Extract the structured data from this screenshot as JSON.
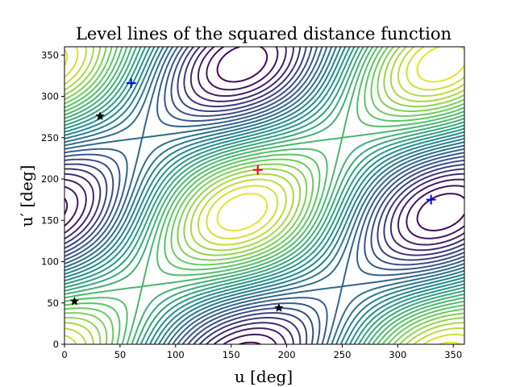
{
  "chart_data": {
    "type": "contour",
    "title": "Level lines of the squared distance function",
    "xlabel": "u [deg]",
    "ylabel": "u′ [deg]",
    "xlim": [
      0,
      360
    ],
    "ylim": [
      0,
      360
    ],
    "xticks": [
      0,
      50,
      100,
      150,
      200,
      250,
      300,
      350
    ],
    "yticks": [
      0,
      50,
      100,
      150,
      200,
      250,
      300,
      350
    ],
    "grid": false,
    "legend": "none",
    "colormap": [
      "#440154",
      "#3b528b",
      "#21918c",
      "#5ec962",
      "#fde725"
    ],
    "markers": {
      "plus_blue": {
        "color": "#0000ff",
        "points": [
          {
            "x": 60,
            "y": 316
          },
          {
            "x": 330,
            "y": 175
          }
        ]
      },
      "plus_red": {
        "color": "#ff0000",
        "points": [
          {
            "x": 174,
            "y": 211
          }
        ]
      },
      "star_black": {
        "color": "#000000",
        "points": [
          {
            "x": 32,
            "y": 276
          },
          {
            "x": 9,
            "y": 52
          },
          {
            "x": 193,
            "y": 44
          }
        ]
      }
    }
  }
}
